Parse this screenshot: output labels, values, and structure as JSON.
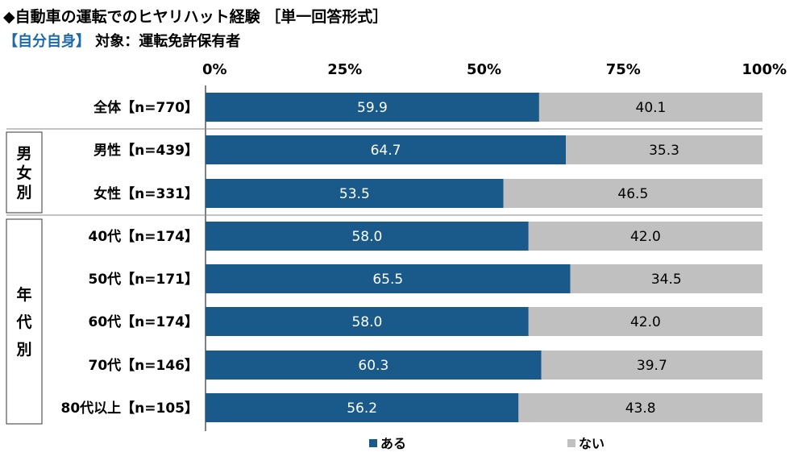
{
  "header": {
    "title": "◆自動車の運転でのヒヤリハット経験 ［単一回答形式］",
    "subtitle_tag": "【自分自身】",
    "subtitle_text": " 対象：運転免許保有者"
  },
  "chart_data": {
    "type": "bar",
    "orientation": "horizontal-stacked-100",
    "xlim": [
      0,
      100
    ],
    "xticks": [
      "0%",
      "25%",
      "50%",
      "75%",
      "100%"
    ],
    "categories": [
      "全体【n=770】",
      "男性【n=439】",
      "女性【n=331】",
      "40代【n=174】",
      "50代【n=171】",
      "60代【n=174】",
      "70代【n=146】",
      "80代以上【n=105】"
    ],
    "series": [
      {
        "name": "ある",
        "color": "#1a5a8a",
        "values": [
          59.9,
          64.7,
          53.5,
          58.0,
          65.5,
          58.0,
          60.3,
          56.2
        ]
      },
      {
        "name": "ない",
        "color": "#c0c0c0",
        "values": [
          40.1,
          35.3,
          46.5,
          42.0,
          34.5,
          42.0,
          39.7,
          43.8
        ]
      }
    ],
    "groups": [
      {
        "label": "男女別",
        "categories": [
          "男性【n=439】",
          "女性【n=331】"
        ]
      },
      {
        "label": "年代別",
        "categories": [
          "40代【n=174】",
          "50代【n=171】",
          "60代【n=174】",
          "70代【n=146】",
          "80代以上【n=105】"
        ]
      }
    ],
    "legend_position": "bottom"
  }
}
